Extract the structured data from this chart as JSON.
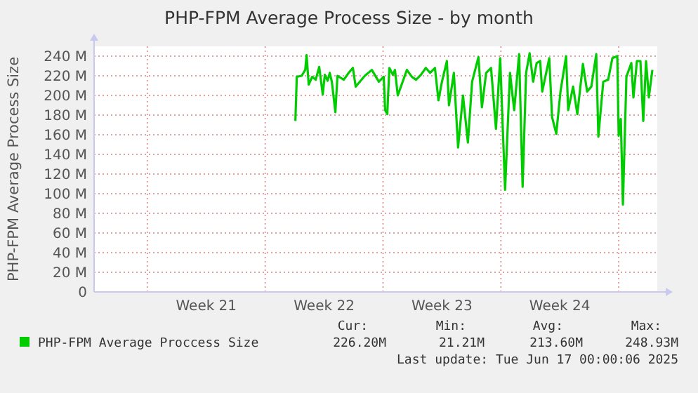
{
  "chart_data": {
    "type": "line",
    "title": "PHP-FPM Average Process Size - by month",
    "ylabel": "PHP-FPM Average Process Size",
    "xlim": [
      "2025-05-14T20:00",
      "2025-06-17T07:00"
    ],
    "ylim": [
      0,
      250
    ],
    "xticks": [
      {
        "value": "2025-05-18",
        "label": null
      },
      {
        "value": "2025-05-21T12:00",
        "label": "Week 21"
      },
      {
        "value": "2025-05-25",
        "label": null
      },
      {
        "value": "2025-05-28T12:00",
        "label": "Week 22"
      },
      {
        "value": "2025-06-01",
        "label": null
      },
      {
        "value": "2025-06-04T12:00",
        "label": "Week 23"
      },
      {
        "value": "2025-06-08",
        "label": null
      },
      {
        "value": "2025-06-11T12:00",
        "label": "Week 24"
      },
      {
        "value": "2025-06-15",
        "label": null
      }
    ],
    "yticks": [
      {
        "value": 0,
        "label": "0"
      },
      {
        "value": 20,
        "label": "20 M"
      },
      {
        "value": 40,
        "label": "40 M"
      },
      {
        "value": 60,
        "label": "60 M"
      },
      {
        "value": 80,
        "label": "80 M"
      },
      {
        "value": 100,
        "label": "100 M"
      },
      {
        "value": 120,
        "label": "120 M"
      },
      {
        "value": 140,
        "label": "140 M"
      },
      {
        "value": 160,
        "label": "160 M"
      },
      {
        "value": 180,
        "label": "180 M"
      },
      {
        "value": 200,
        "label": "200 M"
      },
      {
        "value": 220,
        "label": "220 M"
      },
      {
        "value": 240,
        "label": "240 M"
      }
    ],
    "grid": true,
    "legend": "bottom left",
    "marker": "none",
    "line_style": "solid",
    "series": [
      {
        "name": "PHP-FPM Average Proccess Size",
        "color": "#00cc00",
        "x": [
          "2025-05-26T19:00",
          "2025-05-26T21:00",
          "2025-05-27T04:00",
          "2025-05-27T09:00",
          "2025-05-27T11:00",
          "2025-05-27T14:00",
          "2025-05-27T19:00",
          "2025-05-28T00:00",
          "2025-05-28T05:00",
          "2025-05-28T10:00",
          "2025-05-28T13:00",
          "2025-05-28T17:00",
          "2025-05-28T20:00",
          "2025-05-28T23:00",
          "2025-05-29T04:00",
          "2025-05-29T07:00",
          "2025-05-29T16:00",
          "2025-05-29T23:00",
          "2025-05-30T05:00",
          "2025-05-30T09:00",
          "2025-05-30T22:00",
          "2025-05-31T08:00",
          "2025-05-31T18:00",
          "2025-06-01T01:00",
          "2025-06-01T03:00",
          "2025-06-01T06:00",
          "2025-06-01T09:00",
          "2025-06-01T14:00",
          "2025-06-01T17:00",
          "2025-06-01T21:00",
          "2025-06-02T02:00",
          "2025-06-02T10:00",
          "2025-06-02T17:00",
          "2025-06-02T23:00",
          "2025-06-03T06:00",
          "2025-06-03T13:00",
          "2025-06-03T19:00",
          "2025-06-04T02:00",
          "2025-06-04T07:00",
          "2025-06-04T12:00",
          "2025-06-04T19:00",
          "2025-06-04T22:00",
          "2025-06-05T05:00",
          "2025-06-05T11:00",
          "2025-06-05T18:00",
          "2025-06-06T01:00",
          "2025-06-06T07:00",
          "2025-06-06T16:00",
          "2025-06-06T21:00",
          "2025-06-07T03:00",
          "2025-06-07T10:00",
          "2025-06-07T17:00",
          "2025-06-07T23:00",
          "2025-06-08T06:00",
          "2025-06-08T13:00",
          "2025-06-08T19:00",
          "2025-06-09T02:00",
          "2025-06-09T07:00",
          "2025-06-09T12:00",
          "2025-06-09T17:00",
          "2025-06-09T22:00",
          "2025-06-10T03:00",
          "2025-06-10T08:00",
          "2025-06-10T11:00",
          "2025-06-10T21:00",
          "2025-06-11T01:00",
          "2025-06-11T07:00",
          "2025-06-11T13:00",
          "2025-06-11T21:00",
          "2025-06-12T00:00",
          "2025-06-12T07:00",
          "2025-06-12T13:00",
          "2025-06-12T21:00",
          "2025-06-13T03:00",
          "2025-06-13T09:00",
          "2025-06-13T16:00",
          "2025-06-13T19:00",
          "2025-06-14T02:00",
          "2025-06-14T09:00",
          "2025-06-14T15:00",
          "2025-06-14T22:00",
          "2025-06-15T00:00",
          "2025-06-15T03:00",
          "2025-06-15T06:00",
          "2025-06-15T11:00",
          "2025-06-15T18:00",
          "2025-06-15T21:00",
          "2025-06-16T02:00",
          "2025-06-16T07:00",
          "2025-06-16T11:00",
          "2025-06-16T15:00",
          "2025-06-16T19:00",
          "2025-06-17T00:00"
        ],
        "values": [
          174,
          219,
          220,
          226,
          241,
          211,
          219,
          216,
          229,
          201,
          221,
          215,
          223,
          214,
          183,
          220,
          216,
          223,
          228,
          209,
          220,
          226,
          214,
          219,
          185,
          181,
          228,
          221,
          226,
          200,
          210,
          226,
          219,
          216,
          221,
          228,
          223,
          228,
          195,
          214,
          235,
          190,
          223,
          147,
          200,
          152,
          214,
          239,
          188,
          223,
          228,
          166,
          238,
          104,
          223,
          185,
          242,
          107,
          223,
          243,
          214,
          233,
          235,
          204,
          238,
          178,
          161,
          204,
          240,
          185,
          209,
          181,
          232,
          204,
          209,
          242,
          158,
          214,
          216,
          238,
          240,
          159,
          176,
          89,
          219,
          233,
          198,
          235,
          235,
          174,
          235,
          198,
          226
        ]
      }
    ],
    "annotations": [
      "Cur:",
      "Min:",
      "Avg:",
      "Max:",
      "226.20M",
      "21.21M",
      "213.60M",
      "248.93M",
      "Last update: Tue Jun 17 00:00:06 2025"
    ]
  }
}
